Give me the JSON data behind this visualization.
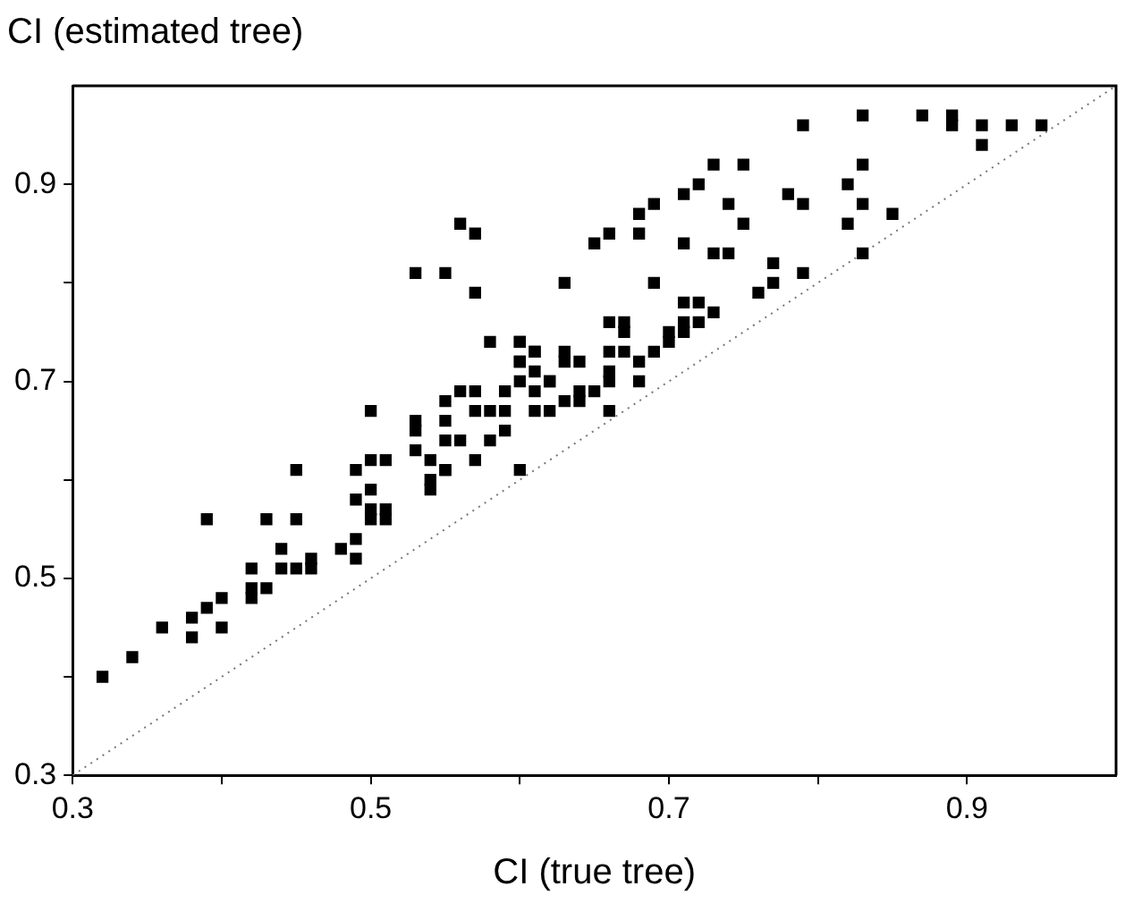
{
  "chart_data": {
    "type": "scatter",
    "xlabel": "CI (true tree)",
    "ylabel": "CI (estimated tree)",
    "xlim": [
      0.3,
      1.0
    ],
    "ylim": [
      0.3,
      1.0
    ],
    "xticks": [
      0.3,
      {
        "value": 0.4,
        "label": null
      },
      0.5,
      {
        "value": 0.6,
        "label": null
      },
      0.7,
      {
        "value": 0.8,
        "label": null
      },
      0.9
    ],
    "yticks": [
      0.3,
      {
        "value": 0.4,
        "label": null
      },
      0.5,
      {
        "value": 0.6,
        "label": null
      },
      0.7,
      {
        "value": 0.8,
        "label": null
      },
      0.9
    ],
    "grid": false,
    "legend": false,
    "marker": "square",
    "series": [
      {
        "color": "#000000",
        "x": [
          0.32,
          0.34,
          0.36,
          0.38,
          0.38,
          0.39,
          0.39,
          0.4,
          0.4,
          0.42,
          0.42,
          0.42,
          0.43,
          0.43,
          0.44,
          0.45,
          0.45,
          0.44,
          0.45,
          0.46,
          0.46,
          0.48,
          0.49,
          0.49,
          0.49,
          0.49,
          0.5,
          0.5,
          0.5,
          0.5,
          0.51,
          0.51,
          0.51,
          0.53,
          0.54,
          0.54,
          0.55,
          0.57,
          0.6,
          0.56,
          0.57,
          0.53,
          0.55,
          0.57,
          0.63,
          0.58,
          0.6,
          0.6,
          0.61,
          0.61,
          0.6,
          0.62,
          0.5,
          0.53,
          0.53,
          0.55,
          0.56,
          0.55,
          0.55,
          0.56,
          0.57,
          0.57,
          0.58,
          0.59,
          0.59,
          0.59,
          0.58,
          0.61,
          0.61,
          0.62,
          0.54,
          0.55,
          0.79,
          0.83,
          0.87,
          0.89,
          0.89,
          0.91,
          0.91,
          0.93,
          0.95,
          0.83,
          0.82,
          0.83,
          0.82,
          0.85,
          0.83,
          0.78,
          0.79,
          0.75,
          0.74,
          0.73,
          0.75,
          0.72,
          0.71,
          0.69,
          0.68,
          0.68,
          0.66,
          0.65,
          0.71,
          0.73,
          0.74,
          0.77,
          0.77,
          0.79,
          0.76,
          0.69,
          0.71,
          0.72,
          0.73,
          0.71,
          0.71,
          0.7,
          0.7,
          0.72,
          0.69,
          0.68,
          0.66,
          0.67,
          0.67,
          0.66,
          0.67,
          0.68,
          0.66,
          0.66,
          0.64,
          0.64,
          0.64,
          0.63,
          0.63,
          0.65,
          0.63,
          0.62,
          0.61,
          0.6,
          0.6,
          0.66
        ],
        "values": [
          0.4,
          0.42,
          0.45,
          0.46,
          0.44,
          0.56,
          0.47,
          0.48,
          0.45,
          0.51,
          0.49,
          0.48,
          0.49,
          0.56,
          0.53,
          0.61,
          0.56,
          0.51,
          0.51,
          0.51,
          0.52,
          0.53,
          0.54,
          0.52,
          0.61,
          0.58,
          0.62,
          0.59,
          0.57,
          0.56,
          0.62,
          0.57,
          0.56,
          0.63,
          0.62,
          0.59,
          0.61,
          0.62,
          0.61,
          0.86,
          0.85,
          0.81,
          0.81,
          0.79,
          0.8,
          0.74,
          0.74,
          0.72,
          0.73,
          0.71,
          0.7,
          0.7,
          0.67,
          0.66,
          0.65,
          0.68,
          0.69,
          0.66,
          0.64,
          0.64,
          0.69,
          0.67,
          0.67,
          0.69,
          0.67,
          0.65,
          0.64,
          0.69,
          0.67,
          0.67,
          0.6,
          0.61,
          0.96,
          0.97,
          0.97,
          0.97,
          0.96,
          0.96,
          0.94,
          0.96,
          0.96,
          0.92,
          0.9,
          0.88,
          0.86,
          0.87,
          0.83,
          0.89,
          0.88,
          0.86,
          0.88,
          0.92,
          0.92,
          0.9,
          0.89,
          0.88,
          0.87,
          0.85,
          0.85,
          0.84,
          0.84,
          0.83,
          0.83,
          0.82,
          0.8,
          0.81,
          0.79,
          0.8,
          0.78,
          0.78,
          0.77,
          0.76,
          0.75,
          0.75,
          0.74,
          0.76,
          0.73,
          0.7,
          0.76,
          0.76,
          0.75,
          0.73,
          0.73,
          0.72,
          0.71,
          0.7,
          0.72,
          0.69,
          0.68,
          0.73,
          0.72,
          0.69,
          0.68,
          0.7,
          0.73,
          0.74,
          0.72,
          0.67
        ]
      },
      {
        "type": "line",
        "color": "#777777",
        "marker": "none",
        "line_style": "dotted",
        "x": [
          0.3,
          1.0
        ],
        "values": [
          0.3,
          1.0
        ]
      }
    ]
  }
}
